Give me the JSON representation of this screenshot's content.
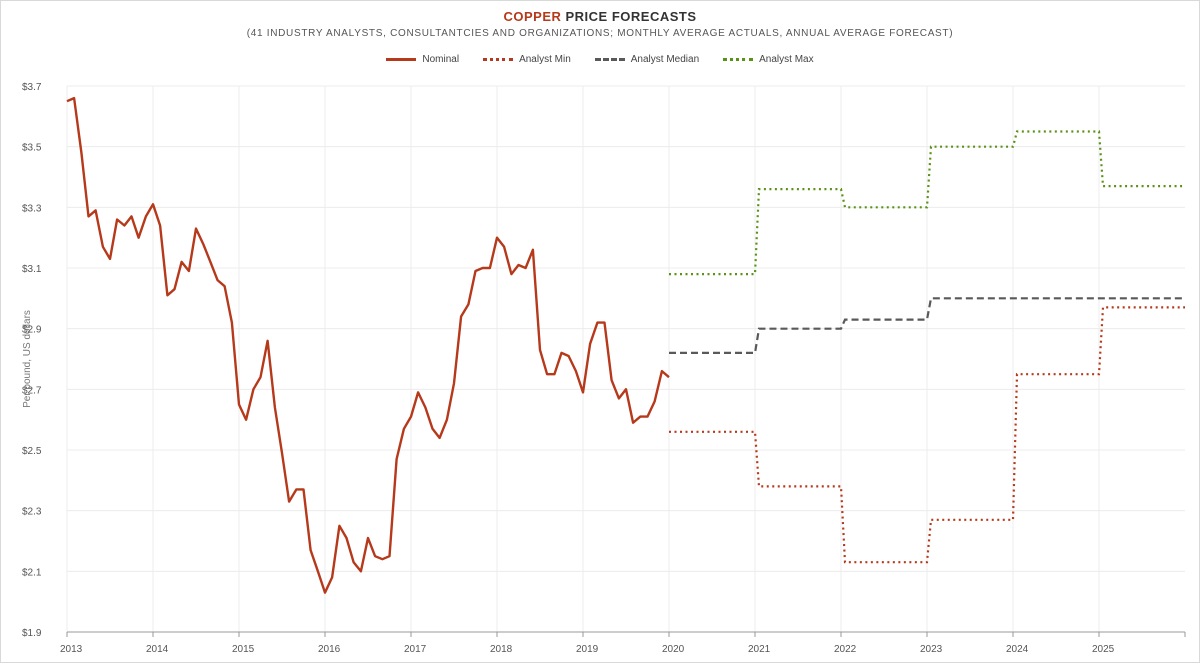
{
  "title": {
    "accent": "COPPER",
    "rest": " PRICE FORECASTS"
  },
  "subtitle": "(41 INDUSTRY ANALYSTS, CONSULTANTCIES AND ORGANIZATIONS; MONTHLY AVERAGE ACTUALS, ANNUAL AVERAGE FORECAST)",
  "colors": {
    "nominal": "#b5391a",
    "min": "#b5391a",
    "median": "#595959",
    "max": "#5a9216",
    "grid": "#ececec"
  },
  "chart_data": {
    "type": "line",
    "title": "COPPER PRICE FORECASTS",
    "ylabel": "Per pound, US dollars",
    "xlim": [
      2013,
      2026
    ],
    "ylim": [
      1.9,
      3.7
    ],
    "yticks": [
      1.9,
      2.1,
      2.3,
      2.5,
      2.7,
      2.9,
      3.1,
      3.3,
      3.5,
      3.7
    ],
    "ytick_labels": [
      "$1.9",
      "$2.1",
      "$2.3",
      "$2.5",
      "$2.7",
      "$2.9",
      "$3.1",
      "$3.3",
      "$3.5",
      "$3.7"
    ],
    "xticks": [
      2013,
      2014,
      2015,
      2016,
      2017,
      2018,
      2019,
      2020,
      2021,
      2022,
      2023,
      2024,
      2025
    ],
    "xtick_labels": [
      "2013",
      "2014",
      "2015",
      "2016",
      "2017",
      "2018",
      "2019",
      "2020",
      "2021",
      "2022",
      "2023",
      "2024",
      "2025"
    ],
    "legend": [
      "Nominal",
      "Analyst Min",
      "Analyst Median",
      "Analyst Max"
    ],
    "series": [
      {
        "name": "Nominal",
        "style": "solid",
        "x": [
          2013.0,
          2013.083,
          2013.167,
          2013.25,
          2013.333,
          2013.417,
          2013.5,
          2013.583,
          2013.667,
          2013.75,
          2013.833,
          2013.917,
          2014.0,
          2014.083,
          2014.167,
          2014.25,
          2014.333,
          2014.417,
          2014.5,
          2014.583,
          2014.667,
          2014.75,
          2014.833,
          2014.917,
          2015.0,
          2015.083,
          2015.167,
          2015.25,
          2015.333,
          2015.417,
          2015.5,
          2015.583,
          2015.667,
          2015.75,
          2015.833,
          2015.917,
          2016.0,
          2016.083,
          2016.167,
          2016.25,
          2016.333,
          2016.417,
          2016.5,
          2016.583,
          2016.667,
          2016.75,
          2016.833,
          2016.917,
          2017.0,
          2017.083,
          2017.167,
          2017.25,
          2017.333,
          2017.417,
          2017.5,
          2017.583,
          2017.667,
          2017.75,
          2017.833,
          2017.917,
          2018.0,
          2018.083,
          2018.167,
          2018.25,
          2018.333,
          2018.417,
          2018.5,
          2018.583,
          2018.667,
          2018.75,
          2018.833,
          2018.917,
          2019.0,
          2019.083,
          2019.167,
          2019.25,
          2019.333,
          2019.417,
          2019.5,
          2019.583,
          2019.667,
          2019.75,
          2019.833,
          2019.917,
          2020.0
        ],
        "values": [
          3.65,
          3.66,
          3.48,
          3.27,
          3.29,
          3.17,
          3.13,
          3.26,
          3.24,
          3.27,
          3.2,
          3.27,
          3.31,
          3.24,
          3.01,
          3.03,
          3.12,
          3.09,
          3.23,
          3.18,
          3.12,
          3.06,
          3.04,
          2.92,
          2.65,
          2.6,
          2.7,
          2.74,
          2.86,
          2.64,
          2.49,
          2.33,
          2.37,
          2.37,
          2.17,
          2.1,
          2.03,
          2.08,
          2.25,
          2.21,
          2.13,
          2.1,
          2.21,
          2.15,
          2.14,
          2.15,
          2.47,
          2.57,
          2.61,
          2.69,
          2.64,
          2.57,
          2.54,
          2.6,
          2.72,
          2.94,
          2.98,
          3.09,
          3.1,
          3.1,
          3.2,
          3.17,
          3.08,
          3.11,
          3.1,
          3.16,
          2.83,
          2.75,
          2.75,
          2.82,
          2.81,
          2.76,
          2.69,
          2.85,
          2.92,
          2.92,
          2.73,
          2.67,
          2.7,
          2.59,
          2.61,
          2.61,
          2.66,
          2.76,
          2.74
        ]
      },
      {
        "name": "Analyst Min",
        "style": "dotted",
        "years": [
          2020,
          2021,
          2022,
          2023,
          2024,
          2025
        ],
        "values": [
          2.56,
          2.38,
          2.13,
          2.27,
          2.75,
          2.97
        ]
      },
      {
        "name": "Analyst Median",
        "style": "dashed",
        "years": [
          2020,
          2021,
          2022,
          2023,
          2024,
          2025
        ],
        "values": [
          2.82,
          2.9,
          2.93,
          3.0,
          3.0,
          3.0
        ]
      },
      {
        "name": "Analyst Max",
        "style": "dotted",
        "years": [
          2020,
          2021,
          2022,
          2023,
          2024,
          2025
        ],
        "values": [
          3.08,
          3.36,
          3.3,
          3.5,
          3.55,
          3.37
        ]
      }
    ]
  }
}
